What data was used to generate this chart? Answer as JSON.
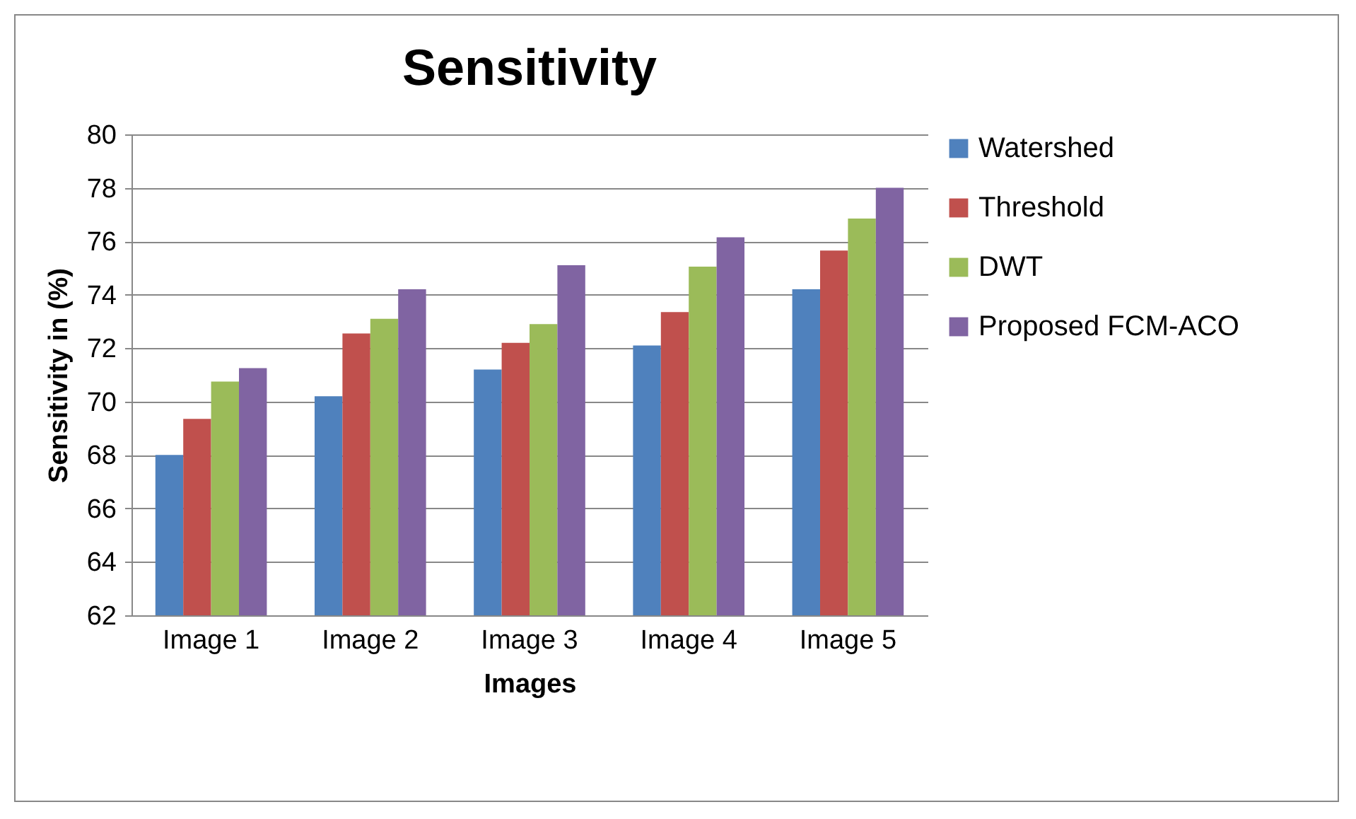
{
  "chart_data": {
    "type": "bar",
    "title": "Sensitivity",
    "xlabel": "Images",
    "ylabel": "Sensitivity in (%)",
    "categories": [
      "Image 1",
      "Image 2",
      "Image 3",
      "Image 4",
      "Image 5"
    ],
    "series": [
      {
        "name": "Watershed",
        "color": "#4f81bd",
        "values": [
          68.0,
          70.2,
          71.2,
          72.1,
          74.2
        ]
      },
      {
        "name": "Threshold",
        "color": "#c0504d",
        "values": [
          69.35,
          72.55,
          72.2,
          73.35,
          75.65
        ]
      },
      {
        "name": "DWT",
        "color": "#9bbb59",
        "values": [
          70.75,
          73.1,
          72.9,
          75.05,
          76.85
        ]
      },
      {
        "name": "Proposed FCM-ACO",
        "color": "#8064a2",
        "values": [
          71.25,
          74.2,
          75.1,
          76.15,
          78.0
        ]
      }
    ],
    "ylim": [
      62,
      80
    ],
    "yticks": [
      62,
      64,
      66,
      68,
      70,
      72,
      74,
      76,
      78,
      80
    ],
    "grid": "y",
    "legend": "right"
  }
}
